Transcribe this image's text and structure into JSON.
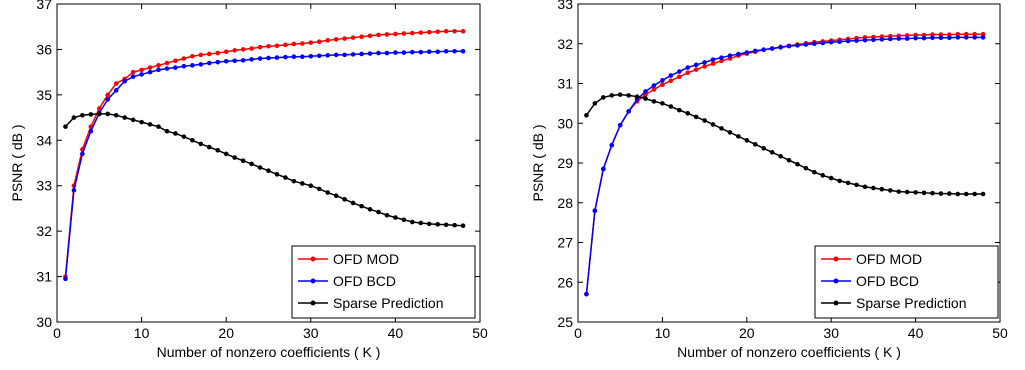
{
  "chart_data": [
    {
      "type": "line",
      "title": "",
      "xlabel": "Number of nonzero coefficients ( K )",
      "ylabel": "PSNR ( dB )",
      "xlim": [
        0,
        50
      ],
      "ylim": [
        30,
        37
      ],
      "xticks": [
        0,
        10,
        20,
        30,
        40,
        50
      ],
      "yticks": [
        30,
        31,
        32,
        33,
        34,
        35,
        36,
        37
      ],
      "grid": false,
      "legend_position": "bottom-right",
      "series": [
        {
          "name": "OFD MOD",
          "color": "#ff0000",
          "x": [
            1,
            2,
            3,
            4,
            5,
            6,
            7,
            8,
            9,
            10,
            11,
            12,
            13,
            14,
            15,
            16,
            17,
            18,
            19,
            20,
            21,
            22,
            23,
            24,
            25,
            26,
            27,
            28,
            29,
            30,
            31,
            32,
            33,
            34,
            35,
            36,
            37,
            38,
            39,
            40,
            41,
            42,
            43,
            44,
            45,
            46,
            47,
            48
          ],
          "y": [
            31.0,
            33.0,
            33.8,
            34.3,
            34.7,
            35.0,
            35.25,
            35.35,
            35.5,
            35.55,
            35.6,
            35.65,
            35.7,
            35.75,
            35.8,
            35.85,
            35.88,
            35.9,
            35.92,
            35.95,
            35.98,
            36.0,
            36.02,
            36.05,
            36.07,
            36.08,
            36.1,
            36.12,
            36.13,
            36.15,
            36.17,
            36.2,
            36.22,
            36.24,
            36.26,
            36.28,
            36.3,
            36.32,
            36.33,
            36.34,
            36.35,
            36.36,
            36.37,
            36.38,
            36.39,
            36.4,
            36.4,
            36.4
          ]
        },
        {
          "name": "OFD BCD",
          "color": "#0000ff",
          "x": [
            1,
            2,
            3,
            4,
            5,
            6,
            7,
            8,
            9,
            10,
            11,
            12,
            13,
            14,
            15,
            16,
            17,
            18,
            19,
            20,
            21,
            22,
            23,
            24,
            25,
            26,
            27,
            28,
            29,
            30,
            31,
            32,
            33,
            34,
            35,
            36,
            37,
            38,
            39,
            40,
            41,
            42,
            43,
            44,
            45,
            46,
            47,
            48
          ],
          "y": [
            30.95,
            32.9,
            33.7,
            34.2,
            34.6,
            34.9,
            35.1,
            35.3,
            35.4,
            35.45,
            35.5,
            35.55,
            35.58,
            35.6,
            35.63,
            35.65,
            35.67,
            35.7,
            35.72,
            35.74,
            35.75,
            35.76,
            35.78,
            35.8,
            35.81,
            35.82,
            35.83,
            35.84,
            35.84,
            35.85,
            35.86,
            35.87,
            35.88,
            35.88,
            35.89,
            35.9,
            35.91,
            35.92,
            35.92,
            35.93,
            35.93,
            35.94,
            35.94,
            35.95,
            35.95,
            35.96,
            35.96,
            35.96
          ]
        },
        {
          "name": "Sparse Prediction",
          "color": "#000000",
          "x": [
            1,
            2,
            3,
            4,
            5,
            6,
            7,
            8,
            9,
            10,
            11,
            12,
            13,
            14,
            15,
            16,
            17,
            18,
            19,
            20,
            21,
            22,
            23,
            24,
            25,
            26,
            27,
            28,
            29,
            30,
            31,
            32,
            33,
            34,
            35,
            36,
            37,
            38,
            39,
            40,
            41,
            42,
            43,
            44,
            45,
            46,
            47,
            48
          ],
          "y": [
            34.3,
            34.5,
            34.55,
            34.57,
            34.58,
            34.58,
            34.55,
            34.5,
            34.45,
            34.4,
            34.35,
            34.3,
            34.2,
            34.15,
            34.08,
            34.0,
            33.92,
            33.85,
            33.78,
            33.7,
            33.62,
            33.55,
            33.48,
            33.4,
            33.33,
            33.25,
            33.18,
            33.1,
            33.05,
            33.0,
            32.93,
            32.85,
            32.78,
            32.7,
            32.62,
            32.55,
            32.48,
            32.42,
            32.35,
            32.3,
            32.25,
            32.2,
            32.18,
            32.16,
            32.15,
            32.14,
            32.13,
            32.12
          ]
        }
      ]
    },
    {
      "type": "line",
      "title": "",
      "xlabel": "Number of nonzero coefficients ( K )",
      "ylabel": "PSNR ( dB )",
      "xlim": [
        0,
        50
      ],
      "ylim": [
        25,
        33
      ],
      "xticks": [
        0,
        10,
        20,
        30,
        40,
        50
      ],
      "yticks": [
        25,
        26,
        27,
        28,
        29,
        30,
        31,
        32,
        33
      ],
      "grid": false,
      "legend_position": "bottom-right",
      "series": [
        {
          "name": "OFD MOD",
          "color": "#ff0000",
          "x": [
            1,
            2,
            3,
            4,
            5,
            6,
            7,
            8,
            9,
            10,
            11,
            12,
            13,
            14,
            15,
            16,
            17,
            18,
            19,
            20,
            21,
            22,
            23,
            24,
            25,
            26,
            27,
            28,
            29,
            30,
            31,
            32,
            33,
            34,
            35,
            36,
            37,
            38,
            39,
            40,
            41,
            42,
            43,
            44,
            45,
            46,
            47,
            48
          ],
          "y": [
            25.7,
            27.8,
            28.85,
            29.45,
            29.95,
            30.3,
            30.55,
            30.72,
            30.85,
            30.97,
            31.07,
            31.17,
            31.27,
            31.35,
            31.43,
            31.5,
            31.57,
            31.63,
            31.7,
            31.75,
            31.8,
            31.85,
            31.88,
            31.92,
            31.95,
            31.98,
            32.01,
            32.04,
            32.06,
            32.08,
            32.1,
            32.12,
            32.14,
            32.16,
            32.17,
            32.18,
            32.19,
            32.2,
            32.21,
            32.22,
            32.22,
            32.23,
            32.23,
            32.23,
            32.24,
            32.24,
            32.24,
            32.24
          ]
        },
        {
          "name": "OFD BCD",
          "color": "#0000ff",
          "x": [
            1,
            2,
            3,
            4,
            5,
            6,
            7,
            8,
            9,
            10,
            11,
            12,
            13,
            14,
            15,
            16,
            17,
            18,
            19,
            20,
            21,
            22,
            23,
            24,
            25,
            26,
            27,
            28,
            29,
            30,
            31,
            32,
            33,
            34,
            35,
            36,
            37,
            38,
            39,
            40,
            41,
            42,
            43,
            44,
            45,
            46,
            47,
            48
          ],
          "y": [
            25.7,
            27.8,
            28.85,
            29.45,
            29.95,
            30.3,
            30.6,
            30.8,
            30.95,
            31.08,
            31.2,
            31.3,
            31.4,
            31.47,
            31.53,
            31.6,
            31.65,
            31.7,
            31.74,
            31.78,
            31.82,
            31.85,
            31.88,
            31.91,
            31.94,
            31.96,
            31.98,
            32.0,
            32.02,
            32.04,
            32.05,
            32.07,
            32.08,
            32.09,
            32.1,
            32.11,
            32.12,
            32.13,
            32.13,
            32.14,
            32.14,
            32.15,
            32.15,
            32.15,
            32.16,
            32.16,
            32.16,
            32.16
          ]
        },
        {
          "name": "Sparse Prediction",
          "color": "#000000",
          "x": [
            1,
            2,
            3,
            4,
            5,
            6,
            7,
            8,
            9,
            10,
            11,
            12,
            13,
            14,
            15,
            16,
            17,
            18,
            19,
            20,
            21,
            22,
            23,
            24,
            25,
            26,
            27,
            28,
            29,
            30,
            31,
            32,
            33,
            34,
            35,
            36,
            37,
            38,
            39,
            40,
            41,
            42,
            43,
            44,
            45,
            46,
            47,
            48
          ],
          "y": [
            30.2,
            30.5,
            30.65,
            30.7,
            30.72,
            30.7,
            30.67,
            30.62,
            30.55,
            30.5,
            30.42,
            30.33,
            30.25,
            30.16,
            30.07,
            29.97,
            29.87,
            29.77,
            29.67,
            29.57,
            29.47,
            29.37,
            29.27,
            29.17,
            29.07,
            28.97,
            28.87,
            28.77,
            28.69,
            28.62,
            28.55,
            28.5,
            28.45,
            28.4,
            28.37,
            28.34,
            28.31,
            28.28,
            28.27,
            28.26,
            28.25,
            28.24,
            28.23,
            28.23,
            28.22,
            28.22,
            28.22,
            28.22
          ]
        }
      ]
    }
  ]
}
